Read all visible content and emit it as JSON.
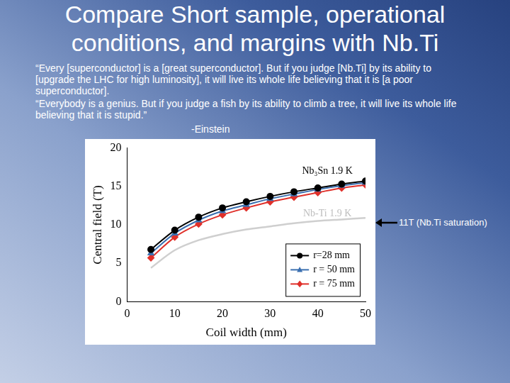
{
  "title": "Compare Short sample, operational conditions, and margins with Nb.Ti",
  "quotes": [
    "“Every [superconductor] is a [great superconductor]. But if you judge [Nb.Ti] by its ability to [upgrade the LHC for high luminosity], it will live its whole life believing that it is [a poor superconductor].",
    "“Everybody is a genius. But if you judge a fish by its ability to climb a tree, it will live its whole life believing that it is stupid.”"
  ],
  "attribution": "-Einstein",
  "callout": "11T (Nb.Ti saturation)",
  "chart_data": {
    "type": "line",
    "x_label": "Coil width (mm)",
    "y_label": "Central field (T)",
    "x": [
      5,
      10,
      15,
      20,
      25,
      30,
      35,
      40,
      45,
      50
    ],
    "xlim": [
      0,
      50
    ],
    "xticks": [
      0,
      10,
      20,
      30,
      40,
      50
    ],
    "ylim": [
      0,
      20
    ],
    "yticks": [
      0,
      5,
      10,
      15,
      20
    ],
    "grid": false,
    "legend": "lower right",
    "annotations": [
      "Nb₃Sn 1.9 K",
      "Nb-Ti 1.9 K"
    ],
    "series": [
      {
        "name": "r=28 mm",
        "color": "#000000",
        "marker": "circle",
        "line_style": "solid",
        "values": [
          6.8,
          9.3,
          11.0,
          12.2,
          13.0,
          13.7,
          14.3,
          14.8,
          15.3,
          15.7
        ]
      },
      {
        "name": "r = 50 mm",
        "color": "#3a6fb0",
        "marker": "triangle",
        "line_style": "solid",
        "values": [
          6.3,
          8.9,
          10.6,
          11.8,
          12.6,
          13.4,
          14.0,
          14.6,
          15.1,
          15.5
        ]
      },
      {
        "name": "r = 75 mm",
        "color": "#e0302a",
        "marker": "diamond",
        "line_style": "solid",
        "values": [
          5.7,
          8.4,
          10.1,
          11.3,
          12.2,
          13.0,
          13.6,
          14.2,
          14.8,
          15.2
        ]
      },
      {
        "color": "#cfcfcf",
        "marker": "none",
        "line_style": "solid",
        "values": [
          4.4,
          6.7,
          8.0,
          8.8,
          9.4,
          9.8,
          10.2,
          10.5,
          10.7,
          10.9
        ]
      }
    ]
  }
}
